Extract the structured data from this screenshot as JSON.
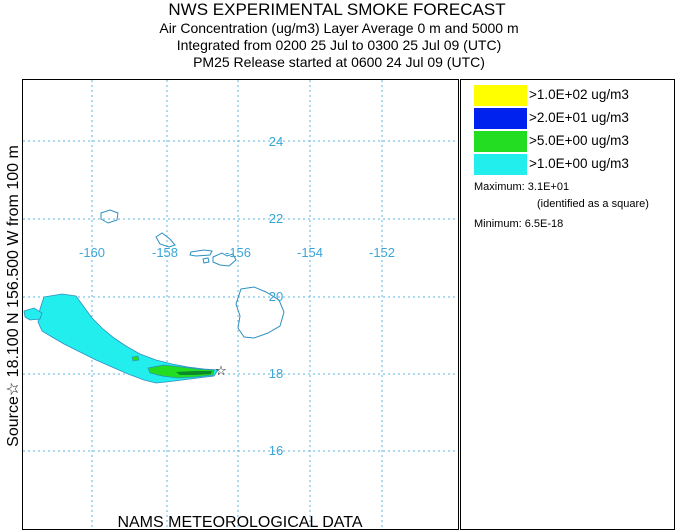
{
  "header": {
    "title": "NWS EXPERIMENTAL SMOKE FORECAST",
    "line2": "Air Concentration (ug/m3) Layer Average    0 m and  5000 m",
    "line3": "Integrated from 0200 25 Jul to 0300 25 Jul 09 (UTC)",
    "line4": "PM25 Release started at 0600 24 Jul 09 (UTC)"
  },
  "side_label": "Source☆ 18.100 N 156.500 W    from  100 m",
  "footer": "NAMS METEOROLOGICAL DATA",
  "map": {
    "lon_labels": [
      "-160",
      "-158",
      "-156",
      "-154",
      "-152"
    ],
    "lat_labels": [
      "24",
      "22",
      "20",
      "18",
      "16"
    ],
    "label_color": "#3aa6d8",
    "grid_color": "#5bb6e0",
    "coast_color": "#2f8fc0",
    "source_symbol": "☆"
  },
  "legend": {
    "items": [
      {
        "label": ">1.0E+02 ug/m3",
        "color": "#ffff00"
      },
      {
        "label": ">2.0E+01 ug/m3",
        "color": "#0022ee"
      },
      {
        "label": ">5.0E+00 ug/m3",
        "color": "#22dd22"
      },
      {
        "label": ">1.0E+00 ug/m3",
        "color": "#22eeee"
      }
    ],
    "maximum": "Maximum: 3.1E+01",
    "identified": "(identified as a square)",
    "minimum": "Minimum: 6.5E-18"
  }
}
